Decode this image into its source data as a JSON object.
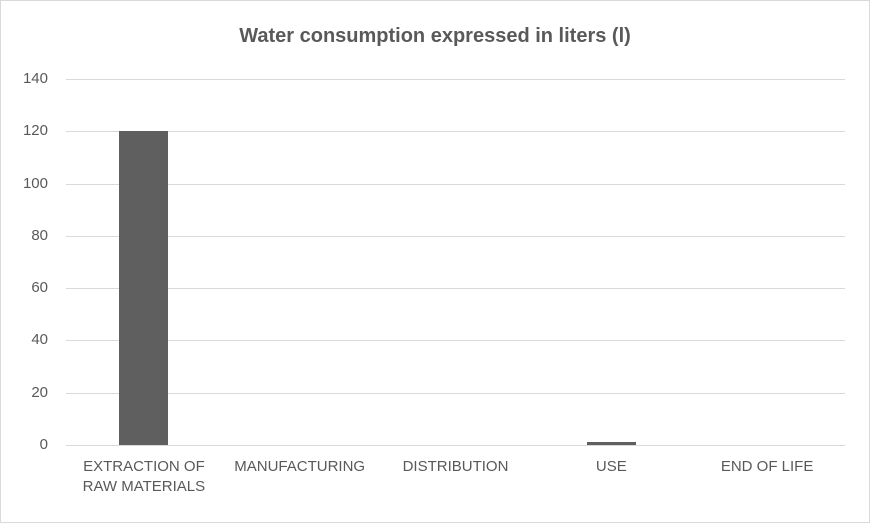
{
  "chart_data": {
    "type": "bar",
    "title": "Water consumption expressed in liters (l)",
    "categories": [
      "EXTRACTION OF RAW MATERIALS",
      "MANUFACTURING",
      "DISTRIBUTION",
      "USE",
      "END OF LIFE"
    ],
    "values": [
      120,
      0,
      0,
      1,
      0
    ],
    "xlabel": "",
    "ylabel": "",
    "ylim": [
      0,
      140
    ],
    "ytick_step": 20,
    "grid": true,
    "legend": false,
    "colors": {
      "bar": "#5f5f5f",
      "text": "#595959",
      "gridline": "#d9d9d9",
      "frame_border": "#d9d9d9",
      "background": "#ffffff"
    }
  }
}
